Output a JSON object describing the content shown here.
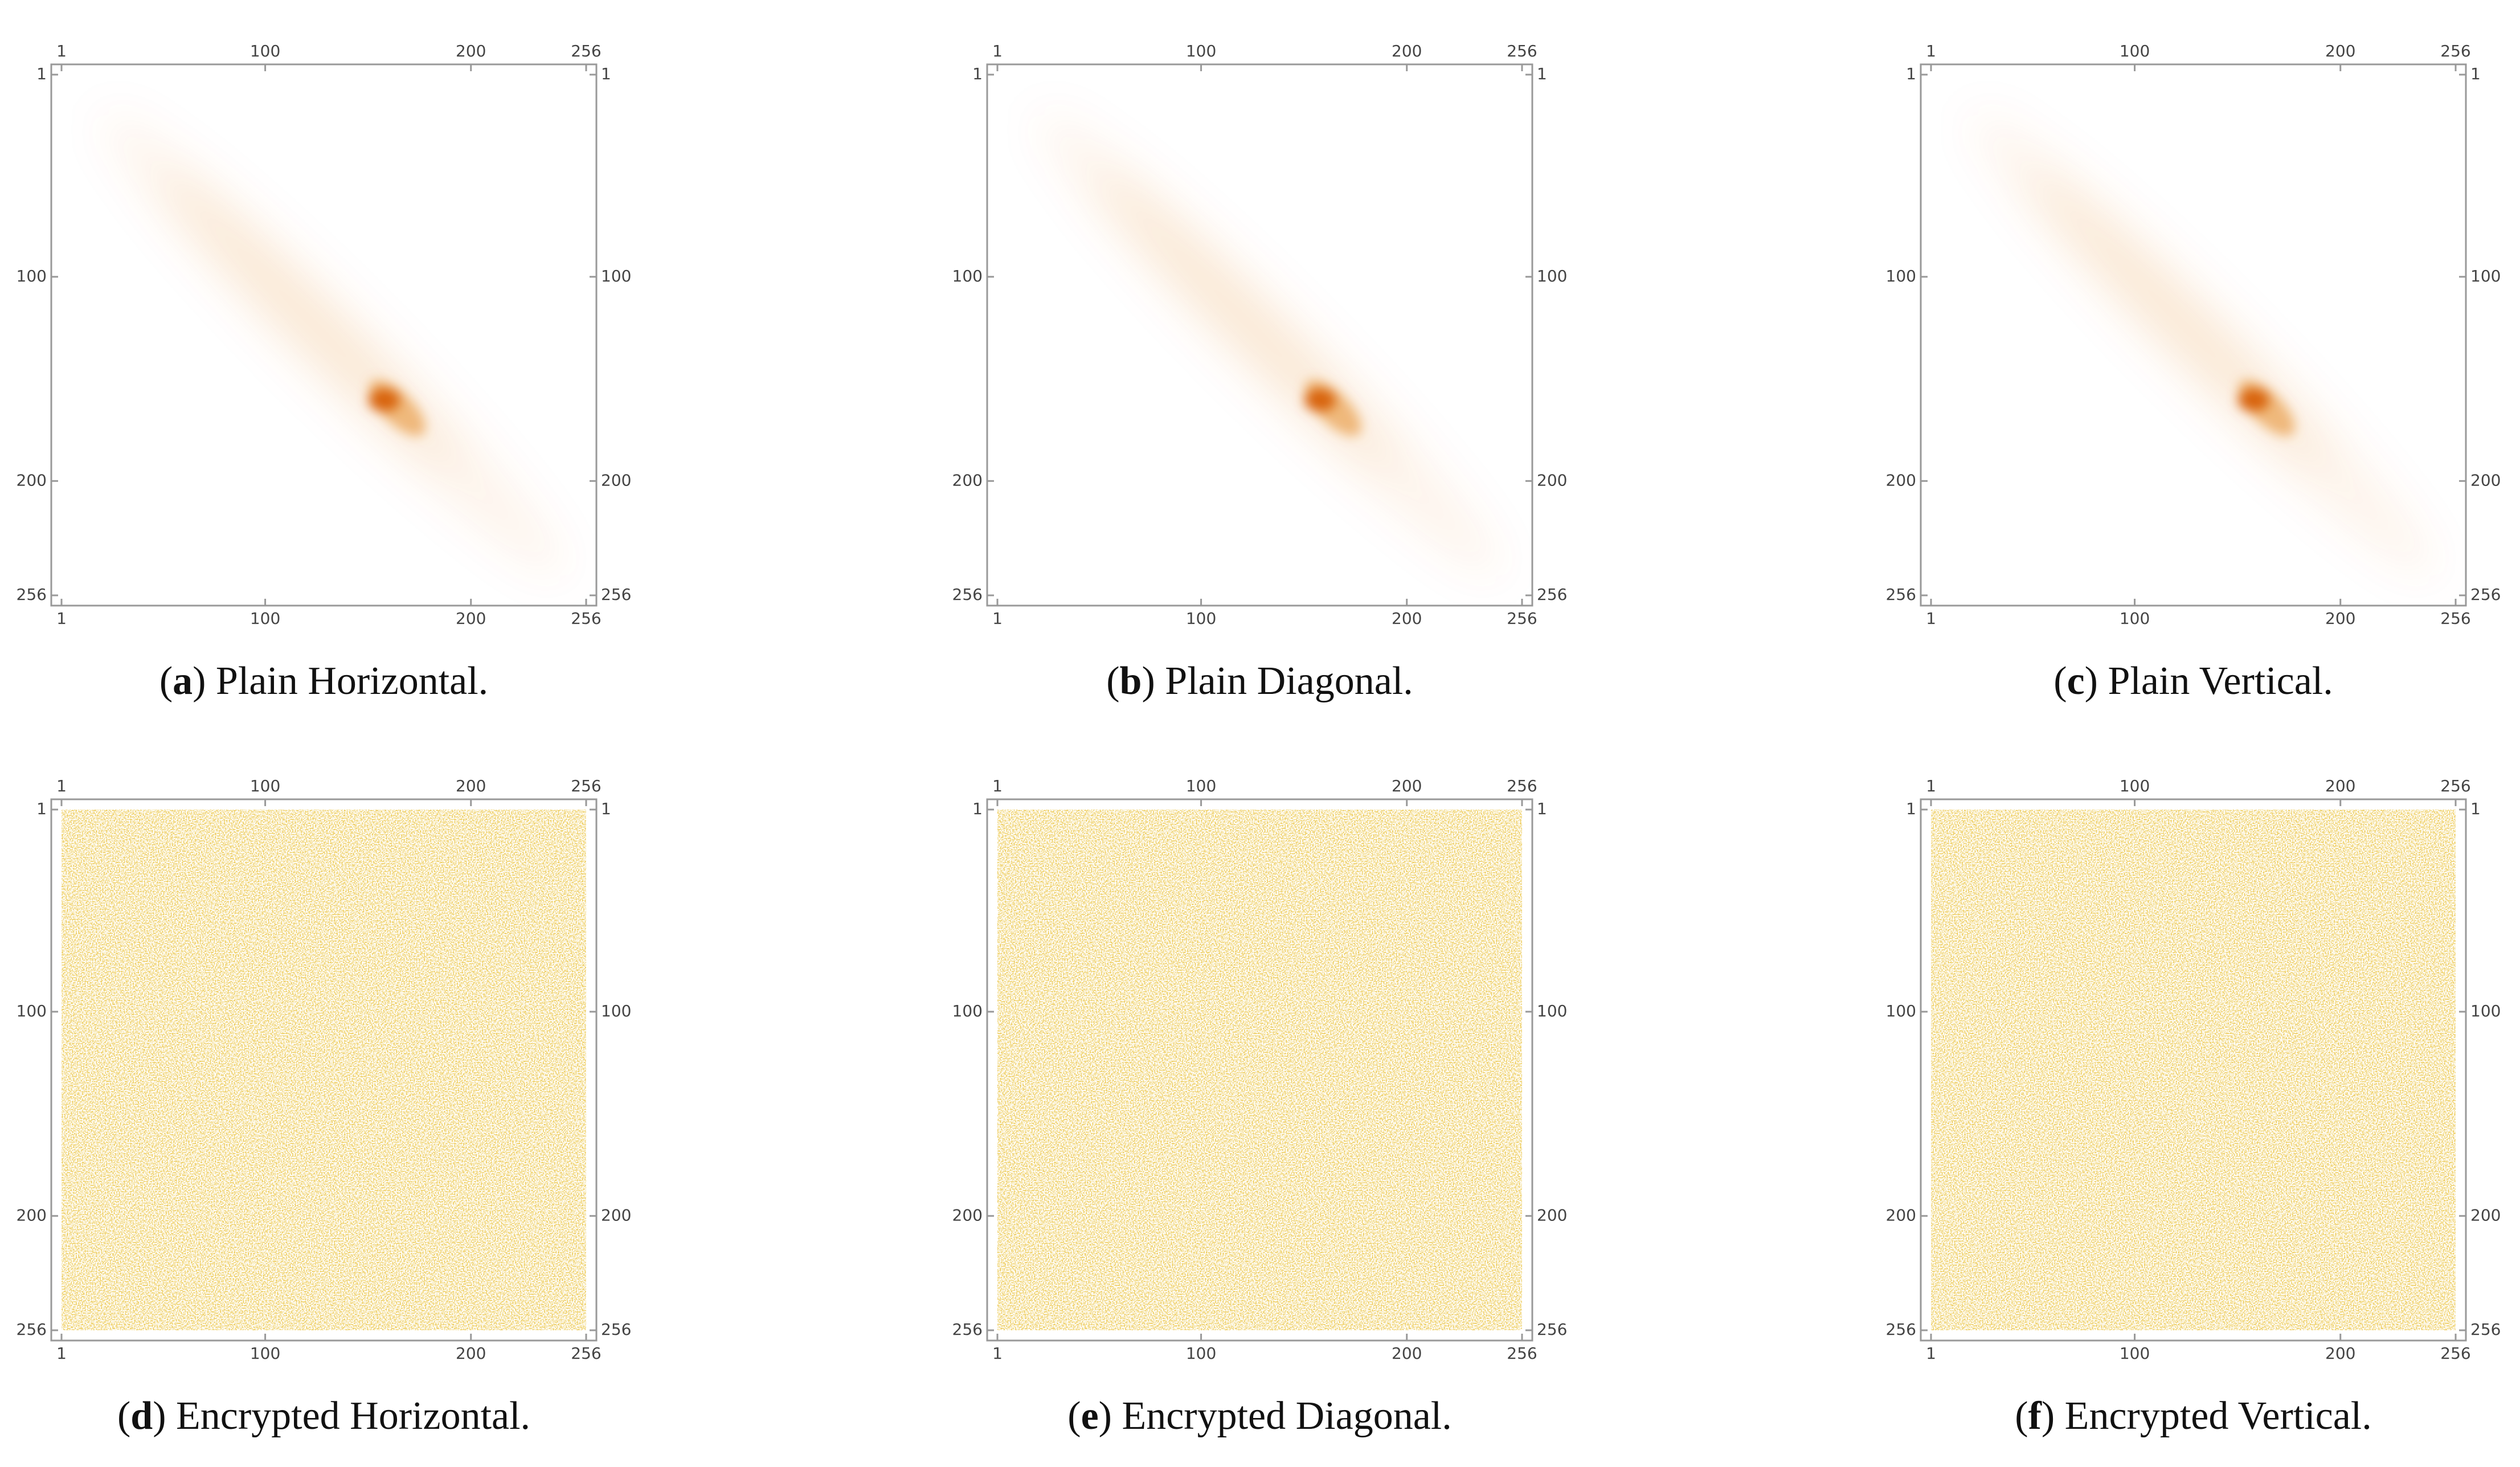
{
  "chart_data": [
    {
      "type": "heatmap",
      "pattern": "plain",
      "color": "#e07800",
      "caption": {
        "open": "(",
        "letter": "a",
        "rest": ") Plain Horizontal."
      },
      "xlim": [
        1,
        256
      ],
      "ylim": [
        256,
        1
      ],
      "xticks": [
        1,
        100,
        200,
        256
      ],
      "yticks": [
        1,
        100,
        200,
        256
      ]
    },
    {
      "type": "heatmap",
      "pattern": "plain",
      "color": "#e07800",
      "caption": {
        "open": "(",
        "letter": "b",
        "rest": ") Plain Diagonal."
      },
      "xlim": [
        1,
        256
      ],
      "ylim": [
        256,
        1
      ],
      "xticks": [
        1,
        100,
        200,
        256
      ],
      "yticks": [
        1,
        100,
        200,
        256
      ]
    },
    {
      "type": "heatmap",
      "pattern": "plain",
      "color": "#e07800",
      "caption": {
        "open": "(",
        "letter": "c",
        "rest": ") Plain Vertical."
      },
      "xlim": [
        1,
        256
      ],
      "ylim": [
        256,
        1
      ],
      "xticks": [
        1,
        100,
        200,
        256
      ],
      "yticks": [
        1,
        100,
        200,
        256
      ]
    },
    {
      "type": "heatmap",
      "pattern": "encrypted",
      "color": "#d99a1a",
      "caption": {
        "open": "(",
        "letter": "d",
        "rest": ") Encrypted Horizontal."
      },
      "xlim": [
        1,
        256
      ],
      "ylim": [
        256,
        1
      ],
      "xticks": [
        1,
        100,
        200,
        256
      ],
      "yticks": [
        1,
        100,
        200,
        256
      ]
    },
    {
      "type": "heatmap",
      "pattern": "encrypted",
      "color": "#d99a1a",
      "caption": {
        "open": "(",
        "letter": "e",
        "rest": ") Encrypted Diagonal."
      },
      "xlim": [
        1,
        256
      ],
      "ylim": [
        256,
        1
      ],
      "xticks": [
        1,
        100,
        200,
        256
      ],
      "yticks": [
        1,
        100,
        200,
        256
      ]
    },
    {
      "type": "heatmap",
      "pattern": "encrypted",
      "color": "#d99a1a",
      "caption": {
        "open": "(",
        "letter": "f",
        "rest": ") Encrypted Vertical."
      },
      "xlim": [
        1,
        256
      ],
      "ylim": [
        256,
        1
      ],
      "xticks": [
        1,
        100,
        200,
        256
      ],
      "yticks": [
        1,
        100,
        200,
        256
      ]
    }
  ]
}
